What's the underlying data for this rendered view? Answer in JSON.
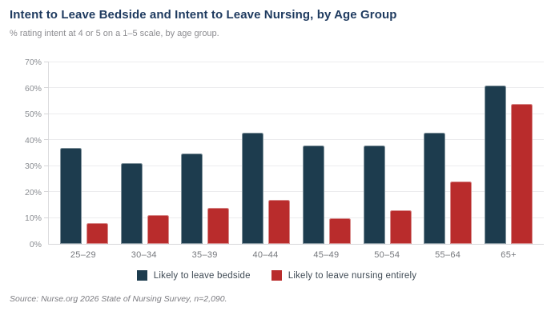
{
  "title": "Intent to Leave Bedside and Intent to Leave Nursing, by Age Group",
  "subtitle": "% rating intent at 4 or 5 on a 1–5 scale, by age group.",
  "source": "Source: Nurse.org 2026 State of Nursing Survey, n=2,090.",
  "colors": {
    "bedside": "#1d3c4e",
    "nursing": "#b92c2c",
    "title_navy": "#1e3a5f",
    "grid": "#ececee",
    "axis": "#d7d7d9",
    "muted_text": "#8a8d92"
  },
  "chart_data": {
    "type": "bar",
    "title": "Intent to Leave Bedside and Intent to Leave Nursing, by Age Group",
    "subtitle": "% rating intent at 4 or 5 on a 1–5 scale, by age group.",
    "categories": [
      "25–29",
      "30–34",
      "35–39",
      "40–44",
      "45–49",
      "50–54",
      "55–64",
      "65+"
    ],
    "series": [
      {
        "name": "Likely to leave bedside",
        "color_key": "bedside",
        "values": [
          37,
          31,
          35,
          43,
          38,
          38,
          43,
          61
        ]
      },
      {
        "name": "Likely to leave nursing entirely",
        "color_key": "nursing",
        "values": [
          8,
          11,
          14,
          17,
          10,
          13,
          24,
          54
        ]
      }
    ],
    "xlabel": "",
    "ylabel": "",
    "ylim": [
      0,
      70
    ],
    "y_ticks": [
      {
        "label": "70%",
        "value": 70
      },
      {
        "label": "60%",
        "value": 60
      },
      {
        "label": "50%",
        "value": 50
      },
      {
        "label": "40%",
        "value": 40
      },
      {
        "label": "30%",
        "value": 30
      },
      {
        "label": "20%",
        "value": 20
      },
      {
        "label": "10%",
        "value": 10
      },
      {
        "label": "0%",
        "value": 0
      }
    ],
    "grid": true,
    "legend_position": "bottom"
  }
}
